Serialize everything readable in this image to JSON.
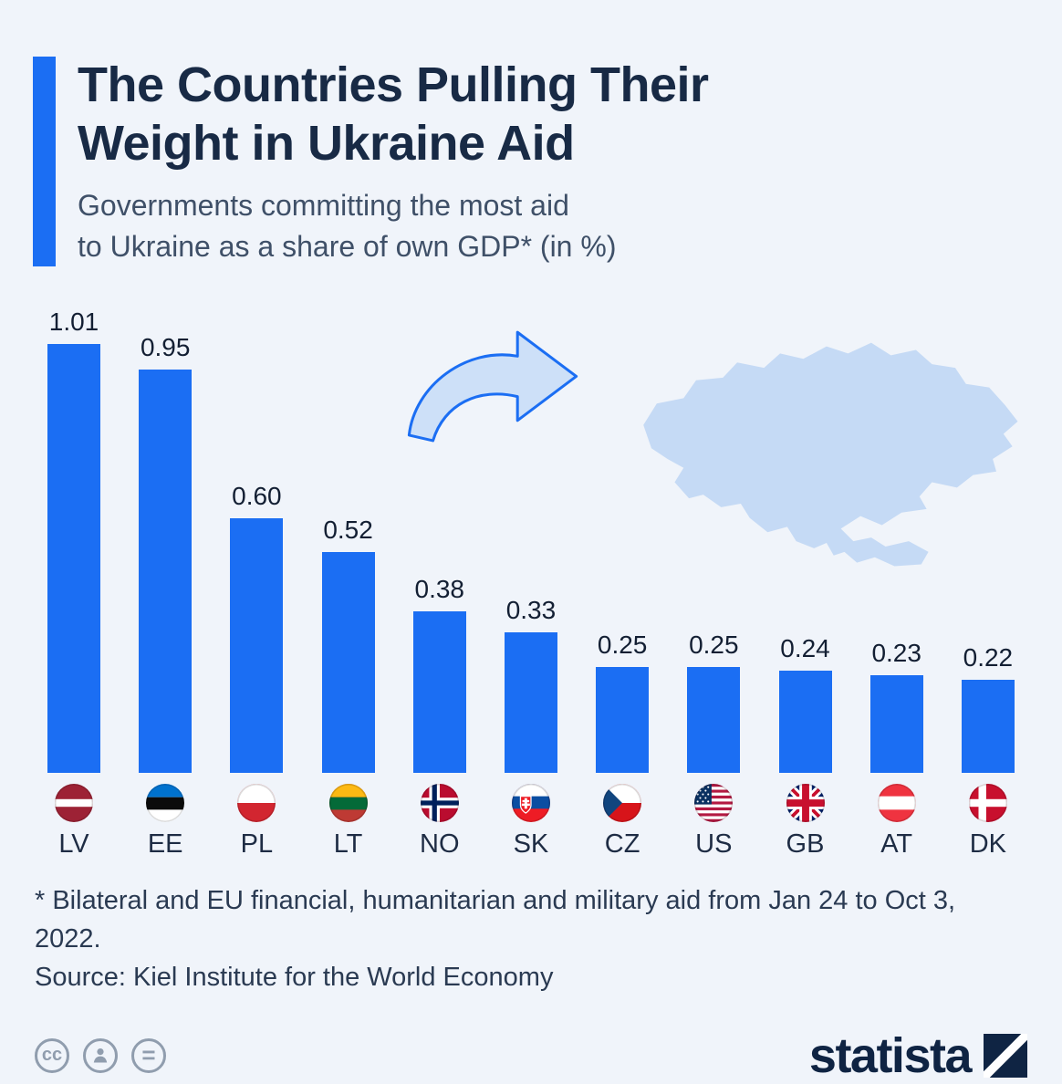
{
  "header": {
    "title_line1": "The Countries Pulling Their",
    "title_line2": "Weight in Ukraine Aid",
    "subtitle_line1": "Governments committing the most aid",
    "subtitle_line2": "to Ukraine as a share of own GDP* (in %)"
  },
  "chart_data": {
    "type": "bar",
    "title": "The Countries Pulling Their Weight in Ukraine Aid",
    "subtitle": "Governments committing the most aid to Ukraine as a share of own GDP* (in %)",
    "categories": [
      "LV",
      "EE",
      "PL",
      "LT",
      "NO",
      "SK",
      "CZ",
      "US",
      "GB",
      "AT",
      "DK"
    ],
    "values": [
      1.01,
      0.95,
      0.6,
      0.52,
      0.38,
      0.33,
      0.25,
      0.25,
      0.24,
      0.23,
      0.22
    ],
    "value_labels": [
      "1.01",
      "0.95",
      "0.60",
      "0.52",
      "0.38",
      "0.33",
      "0.25",
      "0.25",
      "0.24",
      "0.23",
      "0.22"
    ],
    "flags": [
      "latvia-flag-icon",
      "estonia-flag-icon",
      "poland-flag-icon",
      "lithuania-flag-icon",
      "norway-flag-icon",
      "slovakia-flag-icon",
      "czechia-flag-icon",
      "us-flag-icon",
      "uk-flag-icon",
      "austria-flag-icon",
      "denmark-flag-icon"
    ],
    "bar_color": "#1b6ef3",
    "ylim": [
      0,
      1.01
    ],
    "grid": false,
    "legend": "none",
    "xlabel": "",
    "ylabel": ""
  },
  "decor": {
    "map_icon": "ukraine-map-icon",
    "arrow_icon": "curved-arrow-icon",
    "map_color": "#c5daf5",
    "arrow_stroke": "#1b6ef3"
  },
  "footnote": {
    "line1": "* Bilateral and EU financial, humanitarian and military aid from Jan 24 to Oct 3, 2022.",
    "line2": "Source: Kiel Institute for the World Economy"
  },
  "footer": {
    "license_icons": [
      "cc-icon",
      "attribution-person-icon",
      "equal-sign-icon"
    ],
    "cc_label": "cc",
    "equal_glyph": "=",
    "brand": "statista",
    "logo_icon": "statista-logo-icon"
  },
  "colors": {
    "background": "#f0f4fa",
    "accent": "#1b6ef3",
    "title": "#182a45",
    "subtitle": "#3f5068"
  }
}
